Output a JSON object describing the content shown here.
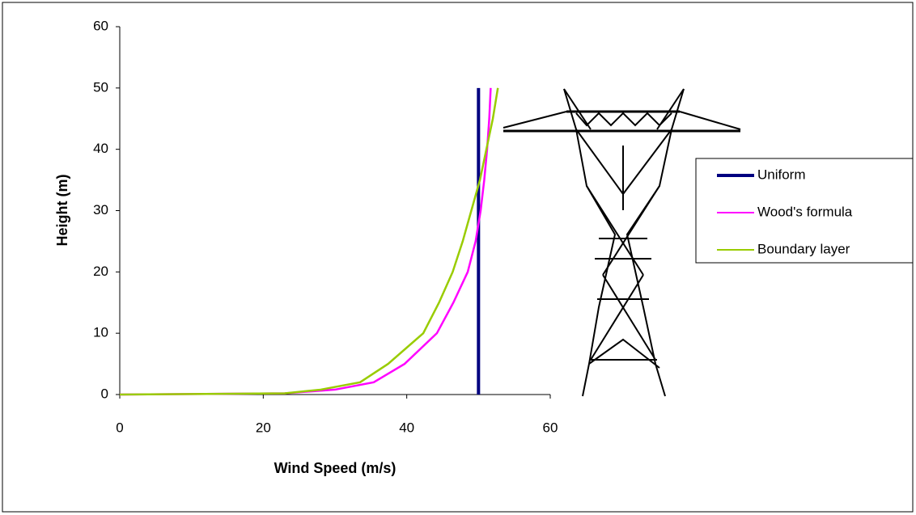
{
  "chart_data": {
    "type": "line",
    "x_label": "Wind Speed (m/s)",
    "y_label": "Height (m)",
    "xlim": [
      0,
      60
    ],
    "xticks": [
      0,
      20,
      40,
      60
    ],
    "ylim": [
      0,
      60
    ],
    "yticks": [
      0,
      10,
      20,
      30,
      40,
      50,
      60
    ],
    "grid": false,
    "legend": "right",
    "series": [
      {
        "name": "Uniform",
        "color": "#000080",
        "x": [
          50,
          50
        ],
        "values": [
          0,
          50
        ]
      },
      {
        "name": "Wood's formula",
        "color": "#ff00ff",
        "x": [
          0,
          23,
          30,
          35.4,
          39.7,
          44.2,
          46.5,
          48.5,
          49.6,
          50.3,
          50.8,
          51.2,
          51.5,
          51.7
        ],
        "values": [
          0,
          0.2,
          0.8,
          2,
          5,
          10,
          15,
          20,
          25,
          30,
          35,
          40,
          45,
          50
        ]
      },
      {
        "name": "Boundary layer",
        "color": "#99cc00",
        "x": [
          0,
          23,
          28,
          33.5,
          37.4,
          42.3,
          44.5,
          46.4,
          47.8,
          49,
          50.2,
          51.1,
          52,
          52.7
        ],
        "values": [
          0,
          0.2,
          0.8,
          2,
          5,
          10,
          15,
          20,
          25,
          30,
          35,
          40,
          45,
          50
        ]
      }
    ]
  }
}
